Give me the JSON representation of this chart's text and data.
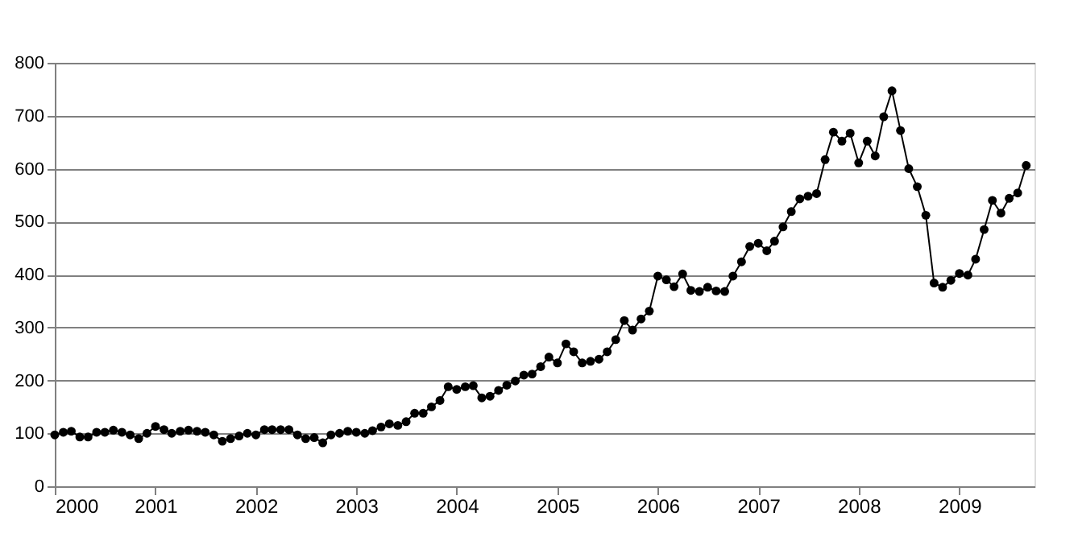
{
  "chart_data": {
    "type": "line",
    "marker": "circle",
    "line_style": "solid",
    "grid": "y",
    "legend": false,
    "x": [
      "2000-01",
      "2000-02",
      "2000-03",
      "2000-04",
      "2000-05",
      "2000-06",
      "2000-07",
      "2000-08",
      "2000-09",
      "2000-10",
      "2000-11",
      "2000-12",
      "2001-01",
      "2001-02",
      "2001-03",
      "2001-04",
      "2001-05",
      "2001-06",
      "2001-07",
      "2001-08",
      "2001-09",
      "2001-10",
      "2001-11",
      "2001-12",
      "2002-01",
      "2002-02",
      "2002-03",
      "2002-04",
      "2002-05",
      "2002-06",
      "2002-07",
      "2002-08",
      "2002-09",
      "2002-10",
      "2002-11",
      "2002-12",
      "2003-01",
      "2003-02",
      "2003-03",
      "2003-04",
      "2003-05",
      "2003-06",
      "2003-07",
      "2003-08",
      "2003-09",
      "2003-10",
      "2003-11",
      "2003-12",
      "2004-01",
      "2004-02",
      "2004-03",
      "2004-04",
      "2004-05",
      "2004-06",
      "2004-07",
      "2004-08",
      "2004-09",
      "2004-10",
      "2004-11",
      "2004-12",
      "2005-01",
      "2005-02",
      "2005-03",
      "2005-04",
      "2005-05",
      "2005-06",
      "2005-07",
      "2005-08",
      "2005-09",
      "2005-10",
      "2005-11",
      "2005-12",
      "2006-01",
      "2006-02",
      "2006-03",
      "2006-04",
      "2006-05",
      "2006-06",
      "2006-07",
      "2006-08",
      "2006-09",
      "2006-10",
      "2006-11",
      "2006-12",
      "2007-01",
      "2007-02",
      "2007-03",
      "2007-04",
      "2007-05",
      "2007-06",
      "2007-07",
      "2007-08",
      "2007-09",
      "2007-10",
      "2007-11",
      "2007-12",
      "2008-01",
      "2008-02",
      "2008-03",
      "2008-04",
      "2008-05",
      "2008-06",
      "2008-07",
      "2008-08",
      "2008-09",
      "2008-10",
      "2008-11",
      "2008-12",
      "2009-01",
      "2009-02",
      "2009-03",
      "2009-04",
      "2009-05",
      "2009-06",
      "2009-07",
      "2009-08",
      "2009-09"
    ],
    "series": [
      {
        "color": "#000000",
        "values": [
          97,
          102,
          104,
          93,
          93,
          102,
          102,
          106,
          102,
          97,
          90,
          100,
          113,
          107,
          100,
          104,
          106,
          104,
          102,
          97,
          85,
          90,
          95,
          100,
          97,
          107,
          107,
          107,
          107,
          97,
          90,
          92,
          82,
          97,
          100,
          104,
          102,
          100,
          105,
          112,
          118,
          115,
          122,
          138,
          138,
          150,
          162,
          188,
          183,
          188,
          190,
          167,
          170,
          181,
          191,
          199,
          210,
          212,
          226,
          244,
          233,
          269,
          254,
          233,
          236,
          240,
          254,
          277,
          313,
          295,
          316,
          331,
          397,
          390,
          377,
          401,
          370,
          368,
          376,
          369,
          368,
          397,
          424,
          453,
          459,
          445,
          463,
          490,
          519,
          543,
          548,
          553,
          617,
          669,
          652,
          667,
          611,
          652,
          624,
          698,
          747,
          672,
          600,
          566,
          512,
          384,
          376,
          389,
          402,
          399,
          429,
          485,
          540,
          516,
          544,
          554,
          606
        ]
      }
    ],
    "xlim": [
      "2000-01",
      "2009-10"
    ],
    "xticks": [
      "2000",
      "2001",
      "2002",
      "2003",
      "2004",
      "2005",
      "2006",
      "2007",
      "2008",
      "2009"
    ],
    "ylim": [
      0,
      800
    ],
    "yticks": [
      0,
      100,
      200,
      300,
      400,
      500,
      600,
      700,
      800
    ]
  }
}
